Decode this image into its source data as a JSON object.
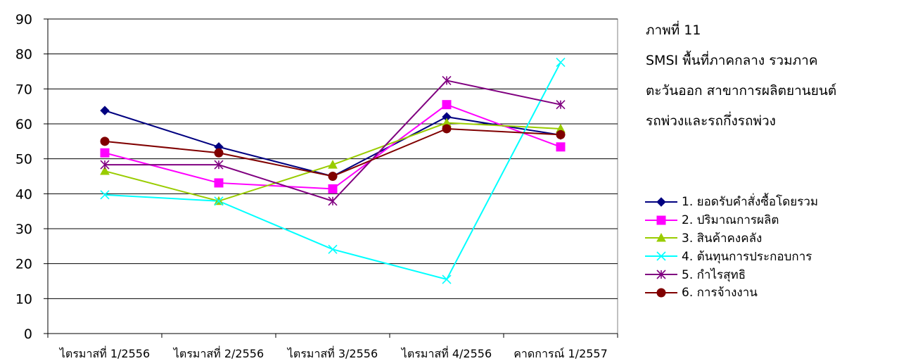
{
  "chart_data": {
    "type": "line",
    "caption": [
      "ภาพที่ 11",
      "SMSI พื้นที่ภาคกลาง รวมภาค",
      "ตะวันออก สาขาการผลิตยานยนต์",
      "รถพ่วงและรถกึ่งรถพ่วง"
    ],
    "categories": [
      "ไตรมาสที่ 1/2556",
      "ไตรมาสที่ 2/2556",
      "ไตรมาสที่ 3/2556",
      "ไตรมาสที่ 4/2556",
      "คาดการณ์ 1/2557"
    ],
    "ylim": [
      0,
      90
    ],
    "yticks": [
      0,
      10,
      20,
      30,
      40,
      50,
      60,
      70,
      80,
      90
    ],
    "grid": true,
    "legend_position": "right",
    "series": [
      {
        "name": "1. ยอดรับคำสั่งซื้อโดยรวม",
        "color": "#000080",
        "marker": "diamond",
        "values": [
          63.8,
          53.4,
          45.0,
          62.0,
          56.8
        ]
      },
      {
        "name": "2. ปริมาณการผลิต",
        "color": "#ff00ff",
        "marker": "square",
        "values": [
          51.7,
          43.1,
          41.4,
          65.5,
          53.4
        ]
      },
      {
        "name": "3. สินค้าคงคลัง",
        "color": "#99cc00",
        "marker": "triangle",
        "values": [
          46.5,
          37.9,
          48.3,
          60.3,
          58.6
        ]
      },
      {
        "name": "4. ต้นทุนการประกอบการ",
        "color": "#00ffff",
        "marker": "x",
        "values": [
          39.7,
          37.9,
          24.1,
          15.5,
          77.6
        ]
      },
      {
        "name": "5. กำไรสุทธิ",
        "color": "#800080",
        "marker": "star",
        "values": [
          48.3,
          48.3,
          37.9,
          72.4,
          65.5
        ]
      },
      {
        "name": "6. การจ้างงาน",
        "color": "#800000",
        "marker": "circle",
        "values": [
          55.0,
          51.7,
          45.0,
          58.6,
          56.9
        ]
      }
    ]
  }
}
